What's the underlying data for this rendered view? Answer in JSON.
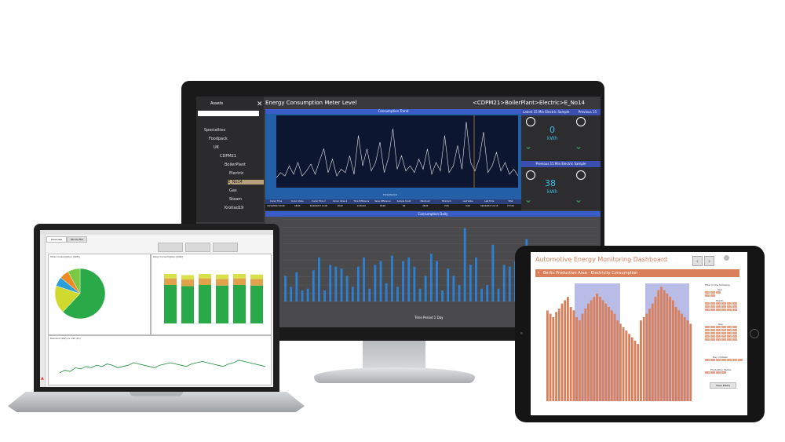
{
  "monitor": {
    "assets_label": "Assets",
    "title": "Energy Consumption Meter Level",
    "breadcrumb": "<CDPM21>BoilerPlant>Electric>E_No14",
    "tree": [
      "Specialties",
      "Foodpack",
      "UK",
      "CDPM21",
      "BoilerPlant",
      "Electric",
      "E_No14",
      "Gas",
      "Steam",
      "Krotlad19"
    ],
    "trend_title": "Consumption Trend",
    "time_period_label": "Time Period",
    "latest_label": "Latest 15 Min Electric Sample",
    "previous_label": "Previous 15",
    "previous_sample_label": "Previous 15 Min Electric Sample",
    "gauge_top_value": "0",
    "gauge_top_unit": "kWh",
    "gauge_bottom_value": "38",
    "gauge_bottom_unit": "kWh",
    "table_headers": [
      "Cursor Time",
      "Cursor Value",
      "Cursor Time 2",
      "Cursor Value 2",
      "Time Difference",
      "Value Difference",
      "Sample Count",
      "Maximum",
      "Minimum",
      "Last Value",
      "Last Time",
      "Total"
    ],
    "table_row": [
      "02/10/2017 20:30",
      "18.00",
      "02/10/2017 11:00",
      "18.00",
      "14:30:00",
      "18.00",
      "96",
      "38.00",
      "0.00",
      "0.00",
      "02/10/2017 21:15",
      "737.00"
    ],
    "daily_title": "Consumption Daily",
    "daily_xlabel": "Time Period 1 Day",
    "daily_values": [
      14,
      8,
      16,
      6,
      7,
      17,
      24,
      6,
      20,
      19,
      18,
      14,
      8,
      19,
      24,
      7,
      20,
      22,
      10,
      25,
      8,
      22,
      24,
      19,
      7,
      14,
      26,
      22,
      6,
      18,
      14,
      9,
      40,
      20,
      24,
      7,
      9,
      31,
      7,
      20,
      19,
      22,
      8,
      34,
      17,
      27,
      20,
      24,
      21,
      16,
      14,
      30,
      8,
      18,
      12,
      22
    ],
    "trend_values": [
      5,
      8,
      6,
      12,
      7,
      14,
      6,
      9,
      13,
      7,
      15,
      22,
      8,
      16,
      6,
      10,
      8,
      18,
      7,
      30,
      12,
      22,
      9,
      14,
      26,
      8,
      17,
      34,
      10,
      18,
      9,
      12,
      8,
      16,
      10,
      22,
      7,
      14,
      9,
      30,
      8,
      12,
      24,
      10,
      38,
      14,
      9,
      16,
      32,
      8,
      12,
      20,
      9,
      14,
      7,
      10,
      6
    ]
  },
  "laptop": {
    "tab_active": "Overview",
    "tab_other": "Minute Bar",
    "pie_title": "Total Consumption (kWh)",
    "bar_title": "Daily Consumption (kWh)",
    "line_title": "Demand (kW) vs. kW (15)",
    "pie_slices": [
      62,
      18,
      6,
      6,
      8
    ],
    "stack_bars": [
      [
        70,
        12,
        8
      ],
      [
        68,
        12,
        8
      ],
      [
        70,
        12,
        8
      ],
      [
        69,
        12,
        8
      ],
      [
        70,
        12,
        8
      ],
      [
        69,
        12,
        8
      ]
    ],
    "line_values": [
      40,
      42,
      41,
      44,
      43,
      45,
      44,
      46,
      45,
      47,
      46,
      44,
      45,
      46,
      48,
      47,
      46,
      45,
      44,
      46,
      47,
      48,
      47,
      46,
      45,
      47,
      48,
      49,
      48,
      47,
      46,
      45,
      47,
      48,
      50,
      49,
      48,
      47,
      46,
      45
    ]
  },
  "tablet": {
    "title": "Automotive Energy Monitoring Dashboard",
    "subtitle": "Berlin Production Area - Electricity Consumption",
    "filter_title": "Filter to the following",
    "filter_year": "Year",
    "filter_month": "Month",
    "filter_day": "Day",
    "filter_dow": "Day of Week",
    "filter_status": "Production Status",
    "clear_button": "Clear Filters",
    "bar_values": [
      54,
      52,
      50,
      53,
      55,
      58,
      60,
      62,
      56,
      54,
      50,
      48,
      52,
      55,
      58,
      60,
      62,
      64,
      62,
      60,
      58,
      56,
      54,
      52,
      48,
      46,
      44,
      42,
      40,
      38,
      36,
      34,
      48,
      50,
      52,
      55,
      58,
      62,
      66,
      68,
      66,
      64,
      62,
      60,
      56,
      54,
      52,
      50,
      48,
      46
    ],
    "bar_color": "#d97f5a",
    "band_color": "#b9bce6"
  }
}
